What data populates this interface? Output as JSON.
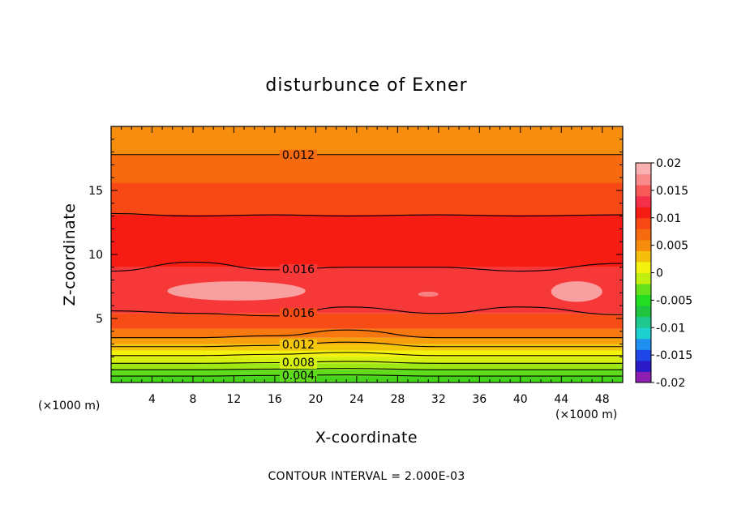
{
  "chart_data": {
    "type": "contour",
    "title": "disturbunce of Exner",
    "xlabel": "X-coordinate",
    "ylabel": "Z-coordinate",
    "x_unit_left": "(×1000 m)",
    "x_unit_right": "(×1000 m)",
    "xlim": [
      0,
      50
    ],
    "ylim": [
      0,
      20
    ],
    "x_ticks": [
      4,
      8,
      12,
      16,
      20,
      24,
      28,
      32,
      36,
      40,
      44,
      48
    ],
    "y_ticks": [
      5,
      10,
      15
    ],
    "grid": false,
    "contour_interval_text": "CONTOUR INTERVAL = 2.000E-03",
    "contour_labels": [
      "0.012",
      "0.016",
      "0.016",
      "0.012",
      "0.008",
      "0.004"
    ],
    "colorbar": {
      "ticks": [
        "0.02",
        "0.015",
        "0.01",
        "0.005",
        "0",
        "-0.005",
        "-0.01",
        "-0.015",
        "-0.02"
      ],
      "range": [
        -0.02,
        0.02
      ],
      "colors": [
        "#8c1fb0",
        "#2a1ac8",
        "#1f46e6",
        "#1f8ff0",
        "#1fd0d0",
        "#1fc88f",
        "#1fc43f",
        "#22dd22",
        "#66e01a",
        "#c2ee10",
        "#f2f20e",
        "#f5c00c",
        "#f68d0c",
        "#f66a10",
        "#f74816",
        "#f61c14",
        "#f5304a",
        "#f85a5a",
        "#f88a8a",
        "#f9b0b0"
      ]
    },
    "field_bands": [
      {
        "z_from": 0.0,
        "z_to": 0.5,
        "color": "#46d41a"
      },
      {
        "z_from": 0.5,
        "z_to": 1.0,
        "color": "#5fdc1c"
      },
      {
        "z_from": 1.0,
        "z_to": 1.5,
        "color": "#9ee814"
      },
      {
        "z_from": 1.5,
        "z_to": 2.0,
        "color": "#d6f10f"
      },
      {
        "z_from": 2.0,
        "z_to": 2.5,
        "color": "#f2f20e"
      },
      {
        "z_from": 2.5,
        "z_to": 3.0,
        "color": "#f5c70c"
      },
      {
        "z_from": 3.0,
        "z_to": 3.5,
        "color": "#f6a00c"
      },
      {
        "z_from": 3.5,
        "z_to": 4.2,
        "color": "#f6780e"
      },
      {
        "z_from": 4.2,
        "z_to": 5.4,
        "color": "#f74c16"
      },
      {
        "z_from": 5.4,
        "z_to": 9.0,
        "color": "#f63838"
      },
      {
        "z_from": 9.0,
        "z_to": 13.1,
        "color": "#f61c14"
      },
      {
        "z_from": 13.1,
        "z_to": 15.6,
        "color": "#f74816"
      },
      {
        "z_from": 15.6,
        "z_to": 17.8,
        "color": "#f66a10"
      },
      {
        "z_from": 17.8,
        "z_to": 20.0,
        "color": "#f68d0c"
      }
    ],
    "contour_lines": [
      {
        "value": 0.004,
        "label": "0.004",
        "z": [
          0.5,
          0.5,
          0.55,
          0.6,
          0.5,
          0.5,
          0.5
        ]
      },
      {
        "value": 0.006,
        "z": [
          1.0,
          1.0,
          1.05,
          1.1,
          1.0,
          1.0,
          1.0
        ]
      },
      {
        "value": 0.008,
        "label": "0.008",
        "z": [
          1.5,
          1.5,
          1.55,
          1.65,
          1.5,
          1.5,
          1.5
        ]
      },
      {
        "value": 0.01,
        "z": [
          2.1,
          2.1,
          2.2,
          2.35,
          2.1,
          2.1,
          2.1
        ]
      },
      {
        "value": 0.012,
        "label": "0.012",
        "z": [
          2.8,
          2.8,
          2.9,
          3.15,
          2.8,
          2.8,
          2.8
        ]
      },
      {
        "value": 0.014,
        "z": [
          3.5,
          3.5,
          3.65,
          4.1,
          3.5,
          3.5,
          3.5
        ]
      },
      {
        "value": 0.016,
        "label": "0.016",
        "z": [
          5.6,
          5.4,
          5.2,
          5.9,
          5.4,
          5.9,
          5.3
        ]
      },
      {
        "value": 0.016,
        "label": "0.016",
        "z": [
          8.7,
          9.4,
          8.8,
          9.0,
          9.0,
          8.7,
          9.3
        ]
      },
      {
        "value": 0.014,
        "z": [
          13.2,
          13.0,
          13.1,
          13.0,
          13.1,
          13.0,
          13.1
        ]
      },
      {
        "value": 0.012,
        "label": "0.012",
        "z": [
          17.8,
          17.8,
          17.8,
          17.8,
          17.8,
          17.8,
          17.8
        ]
      }
    ],
    "contour_x": [
      0,
      8,
      16,
      23,
      32,
      40,
      50
    ],
    "highs": [
      {
        "x_from": 5.5,
        "x_to": 19,
        "z_from": 6.4,
        "z_to": 7.9,
        "color": "#f8a0a0"
      },
      {
        "x_from": 43,
        "x_to": 48,
        "z_from": 6.3,
        "z_to": 7.9,
        "color": "#f8a0a0"
      },
      {
        "x_from": 30,
        "x_to": 32,
        "z_from": 6.7,
        "z_to": 7.1,
        "color": "#f88080"
      }
    ]
  }
}
